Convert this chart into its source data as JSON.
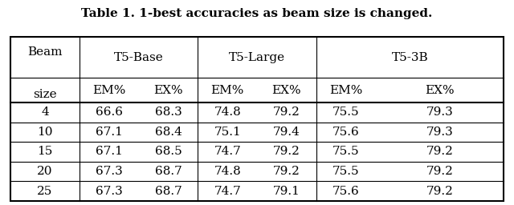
{
  "title": "Table 1. 1-best accuracies as beam size is changed.",
  "col_groups": [
    "T5-Base",
    "T5-Large",
    "T5-3B"
  ],
  "sub_headers": [
    "EM%",
    "EX%"
  ],
  "row_header": [
    "Beam",
    "size"
  ],
  "beam_sizes": [
    "4",
    "10",
    "15",
    "20",
    "25"
  ],
  "data": {
    "T5-Base": {
      "EM%": [
        66.6,
        67.1,
        67.1,
        67.3,
        67.3
      ],
      "EX%": [
        68.3,
        68.4,
        68.5,
        68.7,
        68.7
      ]
    },
    "T5-Large": {
      "EM%": [
        74.8,
        75.1,
        74.7,
        74.8,
        74.7
      ],
      "EX%": [
        79.2,
        79.4,
        79.2,
        79.2,
        79.1
      ]
    },
    "T5-3B": {
      "EM%": [
        75.5,
        75.6,
        75.5,
        75.5,
        75.6
      ],
      "EX%": [
        79.3,
        79.3,
        79.2,
        79.2,
        79.2
      ]
    }
  },
  "bg_color": "#ffffff",
  "text_color": "#000000",
  "title_fontsize": 11,
  "header_fontsize": 11,
  "data_fontsize": 11,
  "line_color": "#000000"
}
